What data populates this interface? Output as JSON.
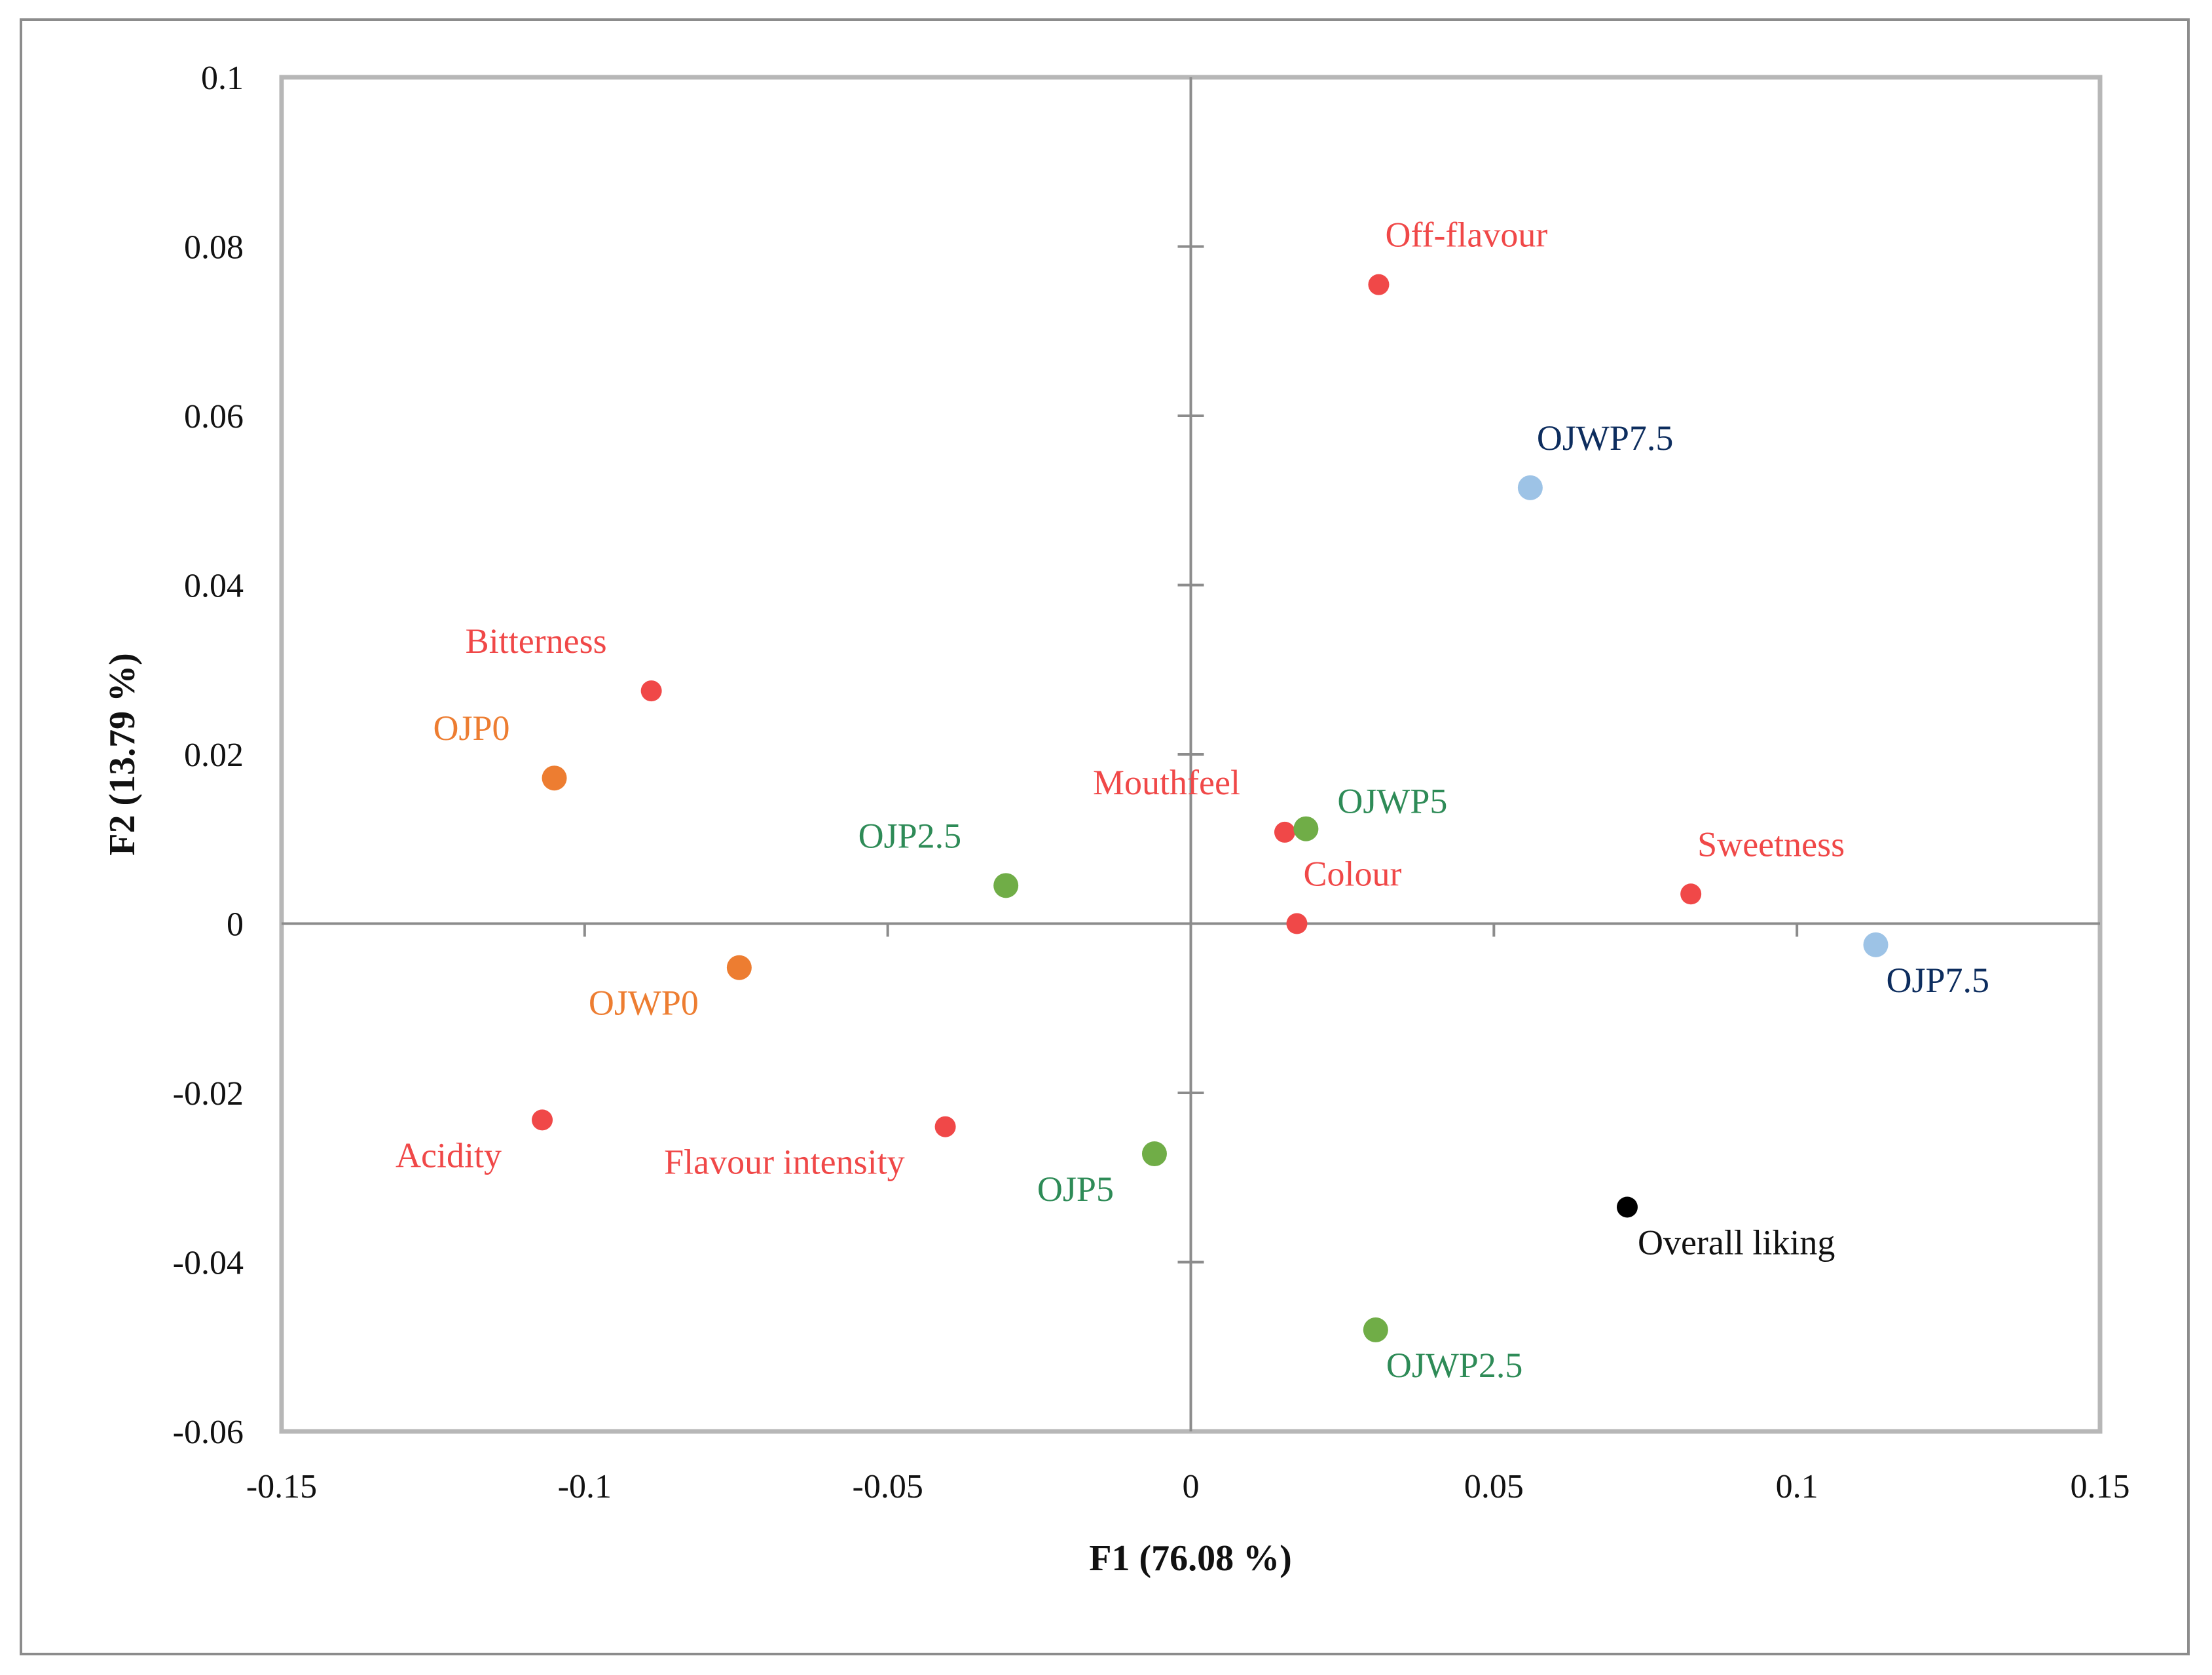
{
  "chart_data": {
    "type": "scatter",
    "title": "",
    "xlabel": "F1 (76.08 %)",
    "ylabel": "F2 (13.79 %)",
    "xlim": [
      -0.15,
      0.15
    ],
    "ylim": [
      -0.06,
      0.1
    ],
    "x_ticks": [
      {
        "value": -0.15,
        "label": "-0.15"
      },
      {
        "value": -0.1,
        "label": "-0.1"
      },
      {
        "value": -0.05,
        "label": "-0.05"
      },
      {
        "value": 0,
        "label": "0"
      },
      {
        "value": 0.05,
        "label": "0.05"
      },
      {
        "value": 0.1,
        "label": "0.1"
      },
      {
        "value": 0.15,
        "label": "0.15"
      }
    ],
    "y_ticks": [
      {
        "value": 0.1,
        "label": "0.1"
      },
      {
        "value": 0.08,
        "label": "0.08"
      },
      {
        "value": 0.06,
        "label": "0.06"
      },
      {
        "value": 0.04,
        "label": "0.04"
      },
      {
        "value": 0.02,
        "label": "0.02"
      },
      {
        "value": 0,
        "label": "0"
      },
      {
        "value": -0.02,
        "label": "-0.02"
      },
      {
        "value": -0.04,
        "label": "-0.04"
      },
      {
        "value": -0.06,
        "label": "-0.06"
      }
    ],
    "series": [
      {
        "name": "attributes",
        "marker_color": "#f04848",
        "label_color": "#f04848",
        "marker_size": "small",
        "points": [
          {
            "label": "Off-flavour",
            "x": 0.031,
            "y": 0.0755,
            "label_position": "above-right"
          },
          {
            "label": "Bitterness",
            "x": -0.089,
            "y": 0.0275,
            "label_position": "above-left"
          },
          {
            "label": "Mouthfeel",
            "x": 0.0155,
            "y": 0.0108,
            "label_position": "above-left"
          },
          {
            "label": "Colour",
            "x": 0.0175,
            "y": 0.0,
            "label_position": "above-right"
          },
          {
            "label": "Sweetness",
            "x": 0.0825,
            "y": 0.0035,
            "label_position": "above-right"
          },
          {
            "label": "Acidity",
            "x": -0.107,
            "y": -0.0232,
            "label_position": "below-left"
          },
          {
            "label": "Flavour intensity",
            "x": -0.0405,
            "y": -0.024,
            "label_position": "below-left"
          }
        ]
      },
      {
        "name": "samples-0",
        "marker_color": "#ed7d31",
        "label_color": "#ed7d31",
        "marker_size": "large",
        "points": [
          {
            "label": "OJP0",
            "x": -0.105,
            "y": 0.0172,
            "label_position": "above-left"
          },
          {
            "label": "OJWP0",
            "x": -0.0745,
            "y": -0.0052,
            "label_position": "below-left"
          }
        ]
      },
      {
        "name": "samples-2.5-5",
        "marker_color": "#70ad47",
        "label_color": "#2e8b57",
        "marker_size": "large",
        "points": [
          {
            "label": "OJP2.5",
            "x": -0.0305,
            "y": 0.0045,
            "label_position": "above-left"
          },
          {
            "label": "OJWP5",
            "x": 0.019,
            "y": 0.0112,
            "label_position": "right"
          },
          {
            "label": "OJP5",
            "x": -0.006,
            "y": -0.0272,
            "label_position": "below-left"
          },
          {
            "label": "OJWP2.5",
            "x": 0.0305,
            "y": -0.048,
            "label_position": "below-right"
          }
        ]
      },
      {
        "name": "samples-7.5",
        "marker_color": "#9dc3e6",
        "label_color": "#0d2d5e",
        "marker_size": "large",
        "points": [
          {
            "label": "OJWP7.5",
            "x": 0.056,
            "y": 0.0515,
            "label_position": "above-right"
          },
          {
            "label": "OJP7.5",
            "x": 0.113,
            "y": -0.0025,
            "label_position": "below-right"
          }
        ]
      },
      {
        "name": "liking",
        "marker_color": "#000000",
        "label_color": "#111111",
        "marker_size": "small",
        "points": [
          {
            "label": "Overall liking",
            "x": 0.072,
            "y": -0.0335,
            "label_position": "below-right"
          }
        ]
      }
    ],
    "colors": {
      "plot_border": "#b7b7b7",
      "outer_border": "#8c8c8c",
      "zero_axis": "#8c8c8c"
    }
  }
}
